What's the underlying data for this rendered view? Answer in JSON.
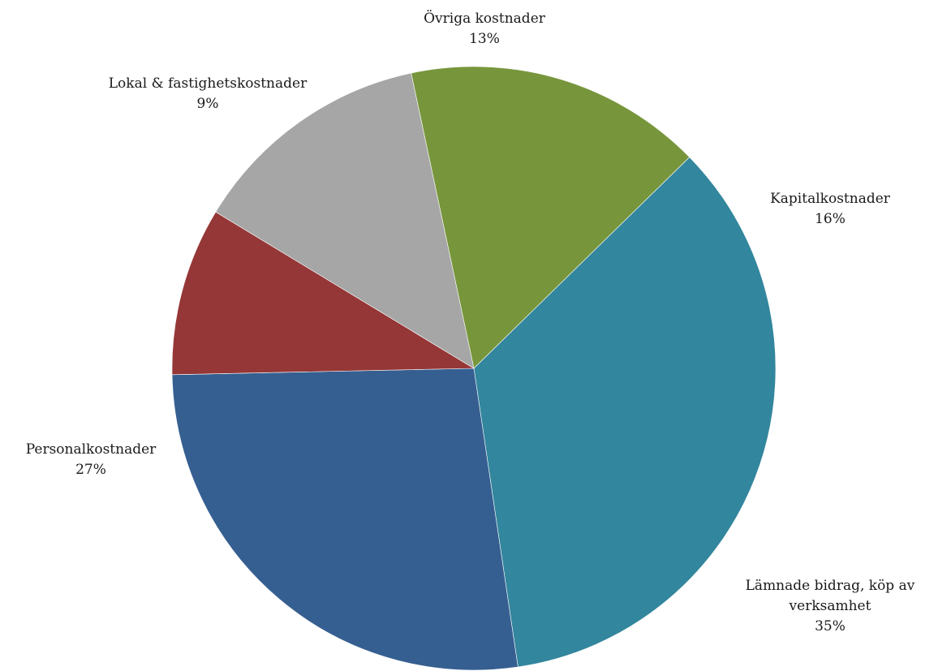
{
  "chart_data": {
    "type": "pie",
    "title": "",
    "start_angle_deg": 348,
    "direction": "clockwise",
    "slices": [
      {
        "label_lines": [
          "Kapitalkostnader"
        ],
        "percent_label": "16%",
        "value": 16,
        "color": "#77963c"
      },
      {
        "label_lines": [
          "Lämnade bidrag, köp av",
          "verksamhet"
        ],
        "percent_label": "35%",
        "value": 35,
        "color": "#32869d"
      },
      {
        "label_lines": [
          "Personalkostnader"
        ],
        "percent_label": "27%",
        "value": 27,
        "color": "#365f91"
      },
      {
        "label_lines": [
          "Lokal & fastighetskostnader"
        ],
        "percent_label": "9%",
        "value": 9,
        "color": "#953737"
      },
      {
        "label_lines": [
          "Övriga kostnader"
        ],
        "percent_label": "13%",
        "value": 13,
        "color": "#a6a6a6"
      }
    ]
  }
}
